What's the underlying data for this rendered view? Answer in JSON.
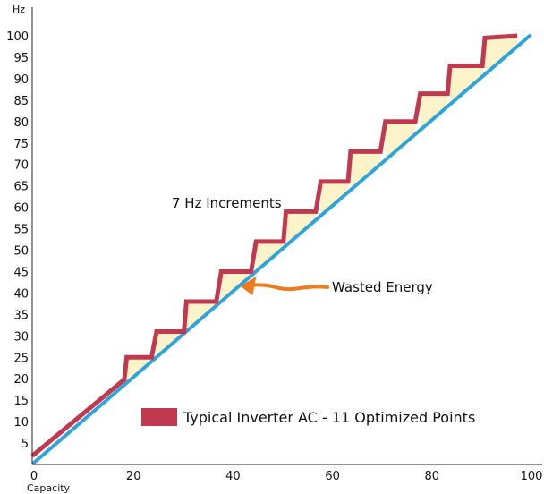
{
  "chart_data": {
    "type": "line",
    "title": "",
    "xlabel": "Capacity",
    "ylabel": "Hz",
    "xlim": [
      0,
      100
    ],
    "ylim": [
      0,
      100
    ],
    "x_ticks": [
      0,
      20,
      40,
      60,
      80,
      100
    ],
    "x_tick_labels": [
      "0",
      "20",
      "40",
      "60",
      "80",
      "100"
    ],
    "y_ticks": [
      5,
      10,
      15,
      20,
      25,
      30,
      35,
      40,
      45,
      50,
      55,
      60,
      65,
      70,
      75,
      80,
      85,
      90,
      95,
      100
    ],
    "y_tick_labels": [
      "5",
      "10",
      "15",
      "20",
      "25",
      "30",
      "35",
      "40",
      "45",
      "50",
      "55",
      "60",
      "65",
      "70",
      "75",
      "80",
      "85",
      "90",
      "95",
      "100"
    ],
    "grid": false,
    "legend_position": "bottom-right",
    "series": [
      {
        "name": "",
        "color": "#2fa4d8",
        "points": [
          [
            0,
            0
          ],
          [
            100,
            100
          ]
        ]
      },
      {
        "name": "Typical Inverter AC - 11 Optimized Points",
        "color": "#c0394f",
        "step_fill": "#fdf3c8",
        "points": [
          [
            0,
            2
          ],
          [
            18.5,
            19.8
          ],
          [
            19,
            25
          ],
          [
            24,
            25
          ],
          [
            25,
            31
          ],
          [
            30.5,
            31
          ],
          [
            31,
            38
          ],
          [
            37,
            38
          ],
          [
            38,
            45
          ],
          [
            44,
            45
          ],
          [
            45,
            52
          ],
          [
            50.5,
            52
          ],
          [
            51,
            59
          ],
          [
            57,
            59
          ],
          [
            58,
            66
          ],
          [
            63.5,
            66
          ],
          [
            64,
            73
          ],
          [
            70,
            73
          ],
          [
            71,
            80
          ],
          [
            77,
            80
          ],
          [
            78,
            86.5
          ],
          [
            83.5,
            86.5
          ],
          [
            84,
            93
          ],
          [
            90.5,
            93
          ],
          [
            91,
            99.5
          ],
          [
            97.5,
            100
          ]
        ]
      }
    ],
    "annotations": [
      {
        "text": "7 Hz Increments",
        "x": 40,
        "y": 62
      },
      {
        "text": "Wasted Energy",
        "x": 60,
        "y": 43,
        "arrow_to": [
          40,
          42
        ]
      }
    ]
  }
}
